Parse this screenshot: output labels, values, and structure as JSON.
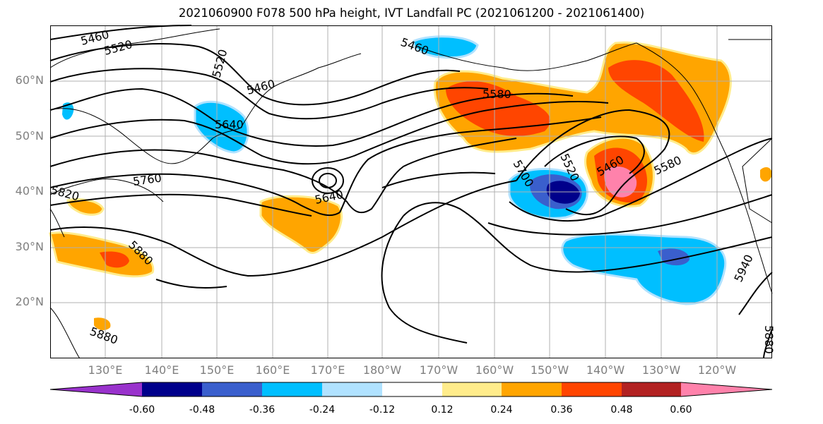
{
  "title": "2021060900 F078 500 hPa height, IVT Landfall PC (2021061200 - 2021061400)",
  "lat_labels": [
    "60°N",
    "50°N",
    "40°N",
    "30°N",
    "20°N"
  ],
  "lon_labels": [
    "130°E",
    "140°E",
    "150°E",
    "160°E",
    "170°E",
    "180°W",
    "170°W",
    "160°W",
    "150°W",
    "140°W",
    "130°W",
    "120°W"
  ],
  "contour_labels": [
    "5460",
    "5520",
    "5520",
    "5460",
    "5460",
    "5640",
    "5760",
    "5820",
    "5640",
    "5880",
    "5880",
    "5580",
    "5700",
    "5520",
    "5460",
    "5580",
    "5940",
    "5880"
  ],
  "colorbar": {
    "tick_labels": [
      "-0.60",
      "-0.48",
      "-0.36",
      "-0.24",
      "-0.12",
      "0.12",
      "0.24",
      "0.36",
      "0.48",
      "0.60"
    ],
    "colors": [
      "#9932cc",
      "#00008b",
      "#3a5fcd",
      "#00bfff",
      "#b0e2ff",
      "#ffffff",
      "#ffec8b",
      "#ffa500",
      "#ff4500",
      "#b22222",
      "#ff82ab"
    ]
  }
}
